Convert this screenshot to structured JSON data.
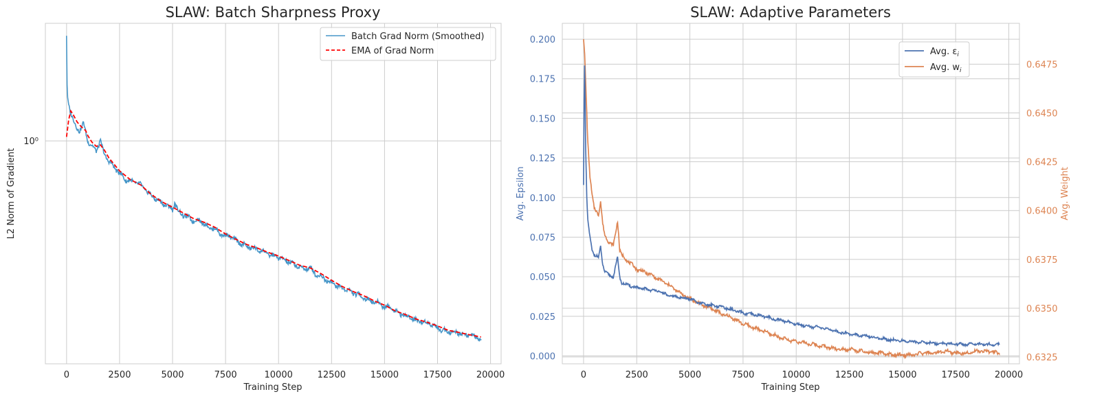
{
  "chart_data": [
    {
      "type": "line",
      "title": "SLAW: Batch Sharpness Proxy",
      "xlabel": "Training Step",
      "ylabel": "L2 Norm of Gradient",
      "yscale": "log",
      "xlim": [
        -1000,
        20500
      ],
      "ylim": [
        0.19,
        2.4
      ],
      "x_ticks": [
        0,
        2500,
        5000,
        7500,
        10000,
        12500,
        15000,
        17500,
        20000
      ],
      "x_tick_labels": [
        "0",
        "2500",
        "5000",
        "7500",
        "10000",
        "12500",
        "15000",
        "17500",
        "20000"
      ],
      "y_ticks": [
        1
      ],
      "y_tick_labels": [
        "10⁰"
      ],
      "grid": true,
      "legend_position": "top-right",
      "series": [
        {
          "name": "Batch Grad Norm (Smoothed)",
          "color": "#4696c8",
          "style": "solid",
          "x": [
            0,
            20,
            60,
            100,
            150,
            200,
            300,
            400,
            500,
            600,
            700,
            800,
            900,
            1000,
            1200,
            1400,
            1600,
            1700,
            1800,
            2000,
            2250,
            2500,
            2750,
            3000,
            3250,
            3500,
            3750,
            4000,
            4250,
            4500,
            4750,
            5000,
            5100,
            5250,
            5500,
            5750,
            6000,
            6250,
            6500,
            6700,
            7000,
            7250,
            7500,
            7750,
            8000,
            8250,
            8500,
            8750,
            9000,
            9250,
            9500,
            9750,
            10000,
            10250,
            10500,
            10750,
            11000,
            11250,
            11500,
            11750,
            12000,
            12250,
            12500,
            12750,
            13000,
            13250,
            13500,
            13750,
            14000,
            14250,
            14500,
            14750,
            15000,
            15250,
            15500,
            15750,
            16000,
            16250,
            16500,
            16750,
            17000,
            17250,
            17500,
            17750,
            18000,
            18250,
            18500,
            18750,
            19000,
            19250,
            19550
          ],
          "values": [
            2.2,
            1.55,
            1.35,
            1.32,
            1.27,
            1.23,
            1.17,
            1.13,
            1.1,
            1.08,
            1.1,
            1.14,
            1.07,
            1.0,
            0.96,
            0.93,
            1.0,
            0.94,
            0.9,
            0.86,
            0.82,
            0.79,
            0.75,
            0.74,
            0.735,
            0.72,
            0.69,
            0.665,
            0.645,
            0.63,
            0.615,
            0.6,
            0.63,
            0.595,
            0.575,
            0.565,
            0.55,
            0.555,
            0.54,
            0.525,
            0.52,
            0.5,
            0.495,
            0.49,
            0.475,
            0.465,
            0.455,
            0.45,
            0.445,
            0.44,
            0.43,
            0.425,
            0.42,
            0.412,
            0.405,
            0.398,
            0.39,
            0.385,
            0.388,
            0.37,
            0.365,
            0.355,
            0.348,
            0.34,
            0.334,
            0.33,
            0.322,
            0.318,
            0.312,
            0.305,
            0.302,
            0.298,
            0.29,
            0.29,
            0.282,
            0.275,
            0.272,
            0.268,
            0.262,
            0.26,
            0.258,
            0.255,
            0.248,
            0.244,
            0.242,
            0.24,
            0.24,
            0.236,
            0.236,
            0.232,
            0.228
          ]
        },
        {
          "name": "EMA of Grad Norm",
          "color": "#ff0000",
          "style": "dashed",
          "x": [
            0,
            50,
            100,
            200,
            300,
            500,
            700,
            900,
            1000,
            1200,
            1400,
            1600,
            1800,
            2000,
            2500,
            3000,
            3500,
            4000,
            4500,
            5000,
            5500,
            6000,
            6500,
            7000,
            7500,
            8000,
            8500,
            9000,
            9500,
            10000,
            10500,
            11000,
            11500,
            12000,
            12500,
            13000,
            13500,
            14000,
            14500,
            15000,
            15500,
            16000,
            16500,
            17000,
            17500,
            18000,
            18500,
            19000,
            19550
          ],
          "values": [
            1.03,
            1.1,
            1.17,
            1.25,
            1.22,
            1.15,
            1.11,
            1.08,
            1.04,
            0.99,
            0.96,
            0.97,
            0.93,
            0.88,
            0.8,
            0.75,
            0.72,
            0.67,
            0.635,
            0.61,
            0.585,
            0.56,
            0.545,
            0.525,
            0.5,
            0.48,
            0.462,
            0.45,
            0.436,
            0.424,
            0.41,
            0.396,
            0.388,
            0.372,
            0.354,
            0.338,
            0.326,
            0.316,
            0.304,
            0.294,
            0.282,
            0.274,
            0.265,
            0.259,
            0.252,
            0.244,
            0.24,
            0.236,
            0.232
          ]
        }
      ]
    },
    {
      "type": "line",
      "title": "SLAW: Adaptive Parameters",
      "xlabel": "Training Step",
      "ylabel": "Avg. Epsilon",
      "ylabel_right": "Avg. Weight",
      "xlim": [
        -1000,
        20500
      ],
      "ylim": [
        -0.005,
        0.21
      ],
      "ylim_right": [
        0.63215,
        0.64959
      ],
      "x_ticks": [
        0,
        2500,
        5000,
        7500,
        10000,
        12500,
        15000,
        17500,
        20000
      ],
      "x_tick_labels": [
        "0",
        "2500",
        "5000",
        "7500",
        "10000",
        "12500",
        "15000",
        "17500",
        "20000"
      ],
      "y_ticks": [
        0,
        0.025,
        0.05,
        0.075,
        0.1,
        0.125,
        0.15,
        0.175,
        0.2
      ],
      "y_tick_labels": [
        "0.000",
        "0.025",
        "0.050",
        "0.075",
        "0.100",
        "0.125",
        "0.150",
        "0.175",
        "0.200"
      ],
      "y_ticks_right": [
        0.6325,
        0.635,
        0.6375,
        0.64,
        0.6425,
        0.645,
        0.6475
      ],
      "y_tick_labels_right": [
        "0.6325",
        "0.6350",
        "0.6375",
        "0.6400",
        "0.6425",
        "0.6450",
        "0.6475"
      ],
      "left_axis_color": "#4c72b0",
      "right_axis_color": "#dd8452",
      "grid": true,
      "legend_position": "upper right",
      "series": [
        {
          "name": "Avg. εi",
          "legend_main": "Avg. ε",
          "legend_sub": "i",
          "axis": "left",
          "color": "#4c72b0",
          "x": [
            0,
            40,
            100,
            150,
            200,
            300,
            400,
            500,
            700,
            800,
            900,
            1000,
            1200,
            1400,
            1600,
            1700,
            1800,
            2000,
            2500,
            3000,
            3500,
            4000,
            4500,
            5000,
            5500,
            6000,
            6500,
            7000,
            7500,
            8000,
            8500,
            9000,
            9500,
            10000,
            10500,
            11000,
            11500,
            12000,
            12500,
            13000,
            13500,
            14000,
            14500,
            15000,
            15500,
            16000,
            16500,
            17000,
            17500,
            18000,
            18500,
            19000,
            19550
          ],
          "values": [
            0.108,
            0.195,
            0.13,
            0.1,
            0.085,
            0.075,
            0.067,
            0.064,
            0.062,
            0.069,
            0.058,
            0.053,
            0.051,
            0.05,
            0.062,
            0.05,
            0.046,
            0.045,
            0.043,
            0.042,
            0.041,
            0.038,
            0.037,
            0.036,
            0.033,
            0.032,
            0.031,
            0.029,
            0.027,
            0.026,
            0.025,
            0.023,
            0.022,
            0.02,
            0.019,
            0.018,
            0.017,
            0.015,
            0.014,
            0.013,
            0.012,
            0.011,
            0.01,
            0.0095,
            0.009,
            0.0085,
            0.008,
            0.0078,
            0.0075,
            0.0072,
            0.0075,
            0.0072,
            0.007
          ]
        },
        {
          "name": "Avg. wi",
          "legend_main": "Avg. w",
          "legend_sub": "i",
          "axis": "right",
          "color": "#dd8452",
          "x": [
            0,
            40,
            100,
            200,
            300,
            400,
            500,
            700,
            800,
            900,
            1000,
            1200,
            1400,
            1500,
            1600,
            1700,
            1800,
            2000,
            2500,
            3000,
            3500,
            4000,
            4500,
            5000,
            5500,
            6000,
            6500,
            7000,
            7500,
            8000,
            8500,
            9000,
            9500,
            10000,
            10500,
            11000,
            11500,
            12000,
            12500,
            13000,
            13500,
            14000,
            14500,
            15000,
            15500,
            16000,
            16500,
            17000,
            17500,
            18000,
            18500,
            19000,
            19550
          ],
          "values": [
            0.6488,
            0.6482,
            0.6465,
            0.6435,
            0.6418,
            0.6408,
            0.6401,
            0.6398,
            0.6405,
            0.6393,
            0.6387,
            0.6384,
            0.6382,
            0.6388,
            0.6395,
            0.638,
            0.6377,
            0.6375,
            0.637,
            0.6368,
            0.6365,
            0.6362,
            0.6358,
            0.6355,
            0.6352,
            0.635,
            0.6347,
            0.6345,
            0.6342,
            0.634,
            0.6338,
            0.6336,
            0.6334,
            0.6333,
            0.6332,
            0.6331,
            0.633,
            0.6329,
            0.6329,
            0.6328,
            0.6327,
            0.6327,
            0.6326,
            0.6326,
            0.6326,
            0.6327,
            0.6327,
            0.6328,
            0.6327,
            0.6327,
            0.6328,
            0.6328,
            0.6327
          ]
        }
      ]
    }
  ]
}
